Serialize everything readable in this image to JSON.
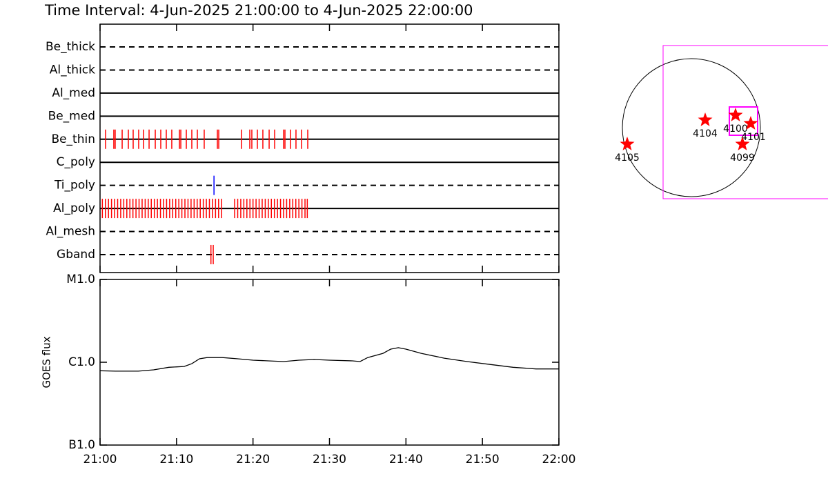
{
  "title": "Time Interval:  4-Jun-2025 21:00:00 to  4-Jun-2025 22:00:00",
  "chart_data": [
    {
      "type": "event",
      "xlim": [
        0,
        60
      ],
      "filters": [
        {
          "name": "Be_thick",
          "style": "dashed",
          "events": []
        },
        {
          "name": "Al_thick",
          "style": "dashed",
          "events": []
        },
        {
          "name": "Al_med",
          "style": "solid",
          "events": []
        },
        {
          "name": "Be_med",
          "style": "solid",
          "events": []
        },
        {
          "name": "Be_thin",
          "style": "solid",
          "color": "#ff0000",
          "events": [
            0.72,
            1.8,
            1.98,
            2.89,
            3.7,
            4.33,
            5.05,
            5.68,
            6.41,
            7.22,
            7.94,
            8.66,
            9.38,
            10.38,
            10.56,
            11.28,
            12.0,
            12.72,
            13.62,
            15.34,
            15.52,
            18.5,
            19.58,
            19.85,
            20.57,
            21.29,
            22.11,
            22.83,
            24.0,
            24.18,
            24.9,
            25.62,
            26.35,
            27.16
          ]
        },
        {
          "name": "C_poly",
          "style": "solid",
          "events": []
        },
        {
          "name": "Ti_poly",
          "style": "dashed",
          "color": "#0000ff",
          "events": [
            14.9
          ]
        },
        {
          "name": "Al_poly",
          "style": "solid",
          "color": "#ff0000",
          "events": [
            0.3,
            0.7,
            1.1,
            1.5,
            1.9,
            2.3,
            2.7,
            3.1,
            3.5,
            3.9,
            4.3,
            4.7,
            5.1,
            5.5,
            5.9,
            6.3,
            6.7,
            7.1,
            7.5,
            7.9,
            8.3,
            8.7,
            9.1,
            9.5,
            9.9,
            10.3,
            10.7,
            11.1,
            11.5,
            11.9,
            12.3,
            12.7,
            13.1,
            13.5,
            13.9,
            14.3,
            14.7,
            15.1,
            15.5,
            15.9,
            17.6,
            18.0,
            18.4,
            18.8,
            19.2,
            19.6,
            20.0,
            20.4,
            20.8,
            21.2,
            21.6,
            22.0,
            22.4,
            22.8,
            23.2,
            23.6,
            24.0,
            24.4,
            24.8,
            25.2,
            25.6,
            26.0,
            26.4,
            26.8,
            27.1
          ]
        },
        {
          "name": "Al_mesh",
          "style": "dashed",
          "events": []
        },
        {
          "name": "Gband",
          "style": "dashed",
          "color": "#ff0000",
          "events": [
            14.5,
            14.8
          ]
        }
      ]
    },
    {
      "type": "line",
      "ylabel": "GOES flux",
      "log": true,
      "color": "#000000",
      "x": [
        0,
        2,
        5,
        7,
        9,
        11,
        12,
        13,
        14,
        16,
        18,
        20,
        22,
        24,
        26,
        28,
        30,
        33,
        34,
        35,
        37,
        38,
        39,
        40,
        42,
        45,
        48,
        51,
        54,
        57,
        60
      ],
      "values": [
        7.9e-07,
        7.8e-07,
        7.8e-07,
        8.1e-07,
        8.7e-07,
        8.9e-07,
        9.6e-07,
        1.1e-06,
        1.14e-06,
        1.14e-06,
        1.1e-06,
        1.06e-06,
        1.04e-06,
        1.02e-06,
        1.06e-06,
        1.08e-06,
        1.06e-06,
        1.04e-06,
        1.02e-06,
        1.14e-06,
        1.28e-06,
        1.44e-06,
        1.5e-06,
        1.44e-06,
        1.28e-06,
        1.12e-06,
        1.02e-06,
        9.4e-07,
        8.7e-07,
        8.3e-07,
        8.3e-07
      ],
      "xlim": [
        0,
        60
      ],
      "xticks": [
        {
          "value": 0,
          "label": "21:00"
        },
        {
          "value": 10,
          "label": "21:10"
        },
        {
          "value": 20,
          "label": "21:20"
        },
        {
          "value": 30,
          "label": "21:30"
        },
        {
          "value": 40,
          "label": "21:40"
        },
        {
          "value": 50,
          "label": "21:50"
        },
        {
          "value": 60,
          "label": "22:00"
        }
      ],
      "ylim": [
        1e-07,
        1e-05
      ],
      "yticks": [
        {
          "value": 1e-07,
          "label": "B1.0"
        },
        {
          "value": 1e-06,
          "label": "C1.0"
        },
        {
          "value": 1e-05,
          "label": "M1.0"
        }
      ]
    }
  ],
  "map": {
    "regions": [
      {
        "label": "4104"
      },
      {
        "label": "4100"
      },
      {
        "label": "4101"
      },
      {
        "label": "4099"
      },
      {
        "label": "4105"
      }
    ]
  }
}
